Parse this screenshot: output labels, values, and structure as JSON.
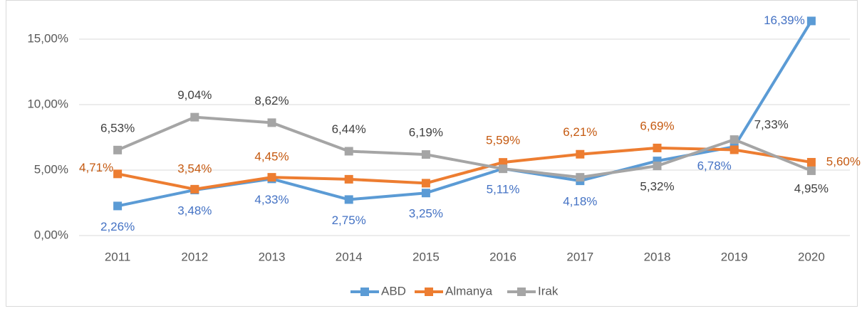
{
  "chart_data": {
    "type": "line",
    "categories": [
      "2011",
      "2012",
      "2013",
      "2014",
      "2015",
      "2016",
      "2017",
      "2018",
      "2019",
      "2020"
    ],
    "series": [
      {
        "name": "ABD",
        "color": "#5b9bd5",
        "label_color": "#4472c4",
        "values": [
          2.26,
          3.48,
          4.33,
          2.75,
          3.25,
          5.11,
          4.18,
          5.7,
          6.78,
          16.39
        ],
        "value_labels": [
          "2,26%",
          "3,48%",
          "4,33%",
          "2,75%",
          "3,25%",
          "5,11%",
          "4,18%",
          null,
          "6,78%",
          "16,39%"
        ]
      },
      {
        "name": "Almanya",
        "color": "#ed7d31",
        "label_color": "#c55a11",
        "values": [
          4.71,
          3.54,
          4.45,
          4.3,
          4.0,
          5.59,
          6.21,
          6.69,
          6.55,
          5.6
        ],
        "value_labels": [
          "4,71%",
          "3,54%",
          "4,45%",
          null,
          null,
          "5,59%",
          "6,21%",
          "6,69%",
          null,
          "5,60%"
        ]
      },
      {
        "name": "Irak",
        "color": "#a5a5a5",
        "label_color": "#404040",
        "values": [
          6.53,
          9.04,
          8.62,
          6.44,
          6.19,
          5.1,
          4.45,
          5.32,
          7.33,
          4.95
        ],
        "value_labels": [
          "6,53%",
          "9,04%",
          "8,62%",
          "6,44%",
          "6,19%",
          null,
          null,
          "5,32%",
          "7,33%",
          "4,95%"
        ]
      }
    ],
    "ylim": [
      0,
      17.5
    ],
    "yticks": [
      {
        "value": 0,
        "label": "0,00%"
      },
      {
        "value": 5,
        "label": "5,00%"
      },
      {
        "value": 10,
        "label": "10,00%"
      },
      {
        "value": 15,
        "label": "15,00%"
      }
    ],
    "grid": true,
    "legend": "bottom"
  }
}
